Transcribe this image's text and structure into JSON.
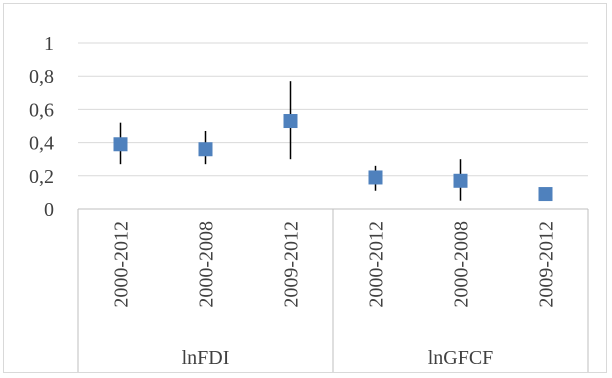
{
  "chart_data": {
    "type": "scatter",
    "title": "",
    "xlabel": "",
    "ylabel": "",
    "ylim": [
      0,
      1
    ],
    "yticks": [
      0,
      0.2,
      0.4,
      0.6,
      0.8,
      1
    ],
    "ytick_labels": [
      "0",
      "0,2",
      "0,4",
      "0,6",
      "0,8",
      "1"
    ],
    "grid": true,
    "legend": "none",
    "marker": "square",
    "marker_color": "#4f81bd",
    "errorbar_color": "#000000",
    "groups": [
      {
        "label": "lnFDI",
        "categories": [
          "2000-2012",
          "2000-2008",
          "2009-2012"
        ]
      },
      {
        "label": "lnGFCF",
        "categories": [
          "2000-2012",
          "2000-2008",
          "2009-2012"
        ]
      }
    ],
    "points": [
      {
        "group": "lnFDI",
        "category": "2000-2012",
        "value": 0.39,
        "lower": 0.27,
        "upper": 0.52
      },
      {
        "group": "lnFDI",
        "category": "2000-2008",
        "value": 0.36,
        "lower": 0.27,
        "upper": 0.47
      },
      {
        "group": "lnFDI",
        "category": "2009-2012",
        "value": 0.53,
        "lower": 0.3,
        "upper": 0.77
      },
      {
        "group": "lnGFCF",
        "category": "2000-2012",
        "value": 0.19,
        "lower": 0.11,
        "upper": 0.26
      },
      {
        "group": "lnGFCF",
        "category": "2000-2008",
        "value": 0.17,
        "lower": 0.05,
        "upper": 0.3
      },
      {
        "group": "lnGFCF",
        "category": "2009-2012",
        "value": 0.09,
        "lower": 0.09,
        "upper": 0.09
      }
    ]
  }
}
